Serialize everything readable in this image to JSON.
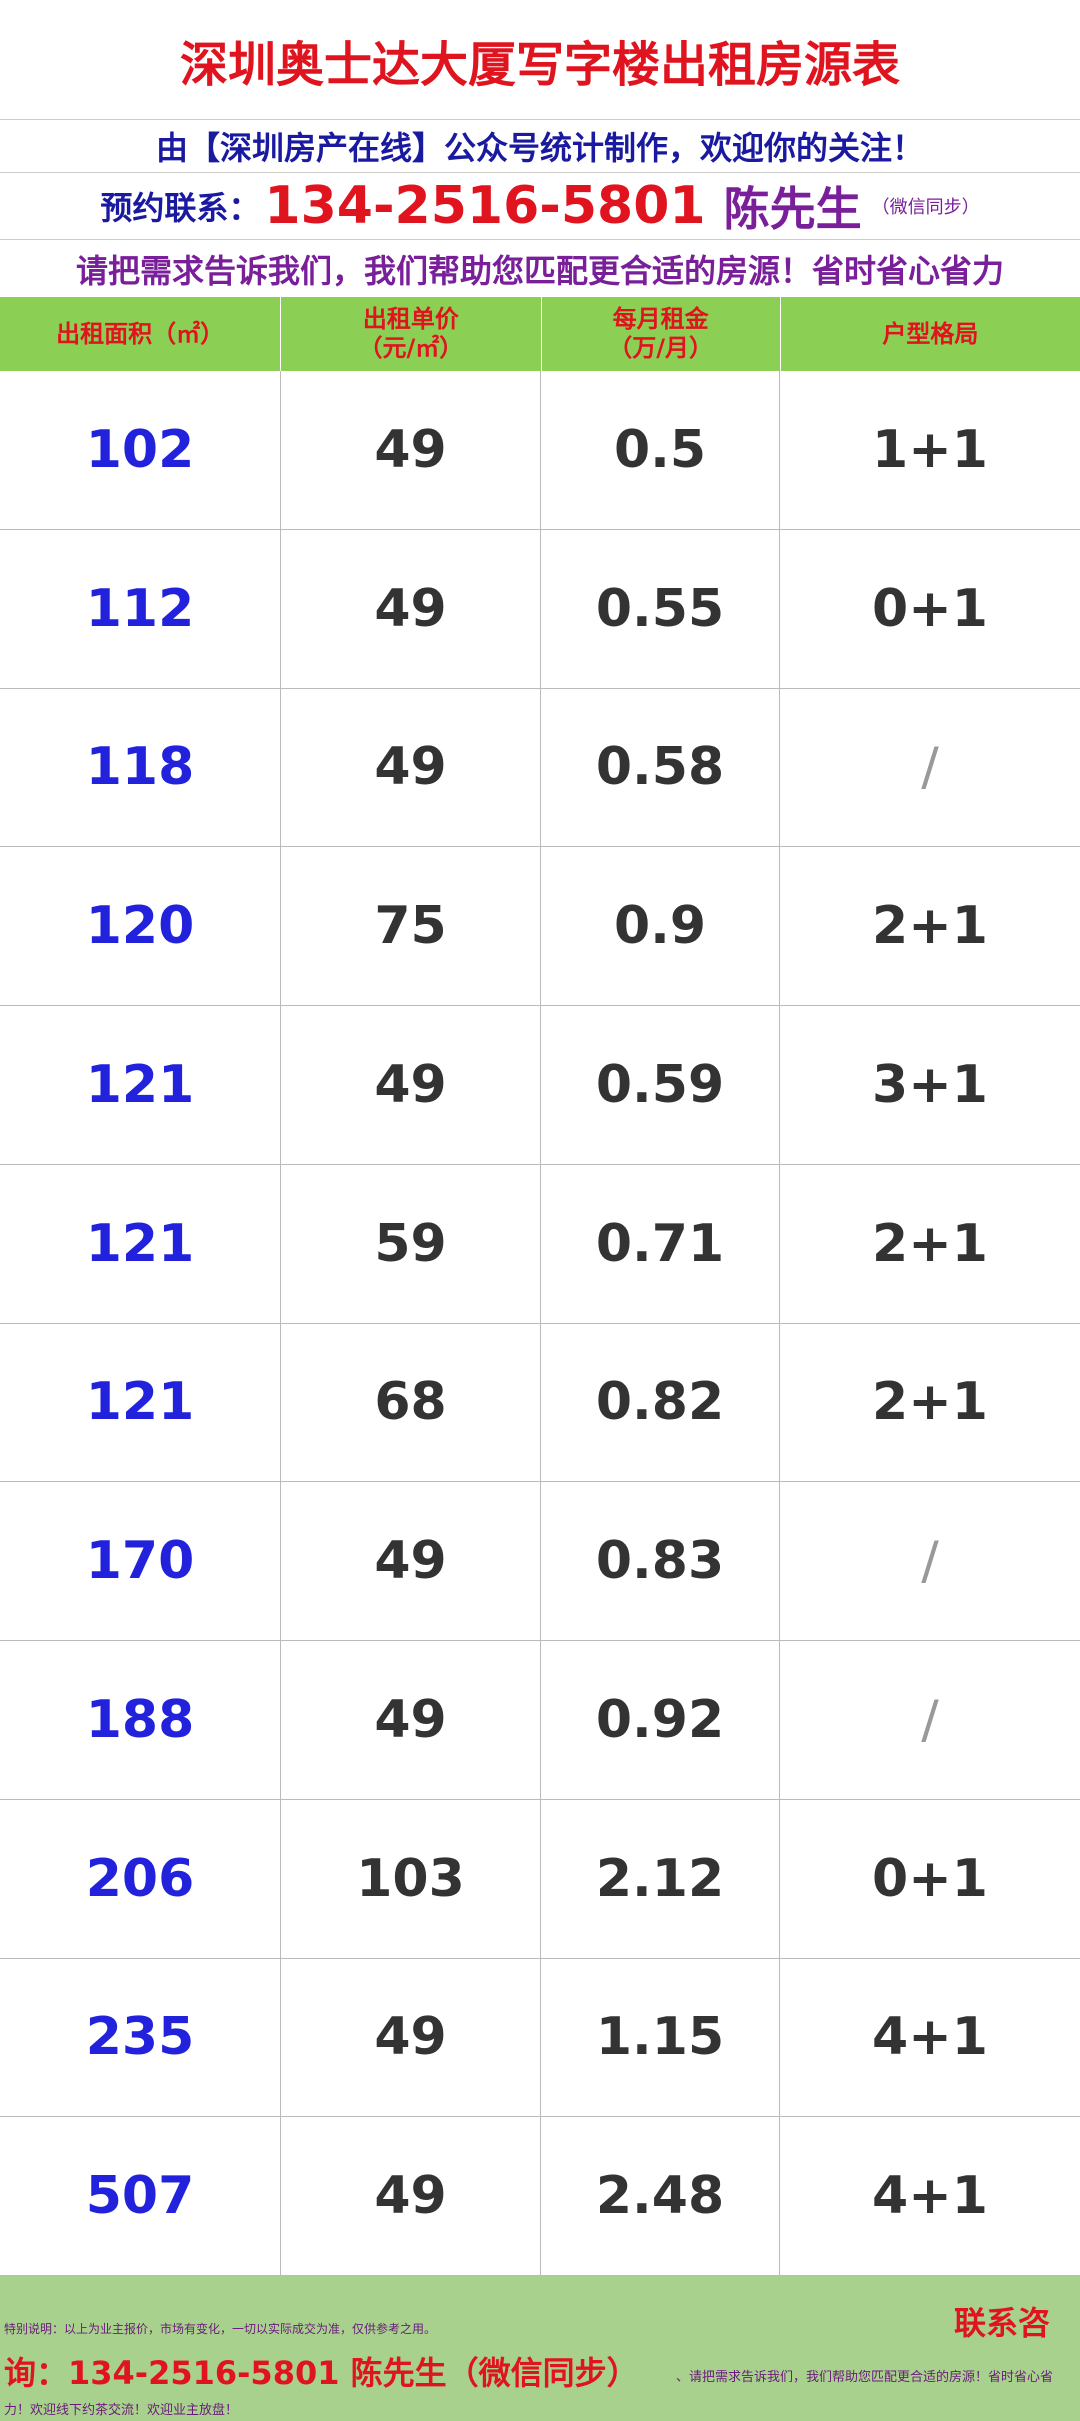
{
  "header": {
    "title": "深圳奥士达大厦写字楼出租房源表",
    "subtitle": "由【深圳房产在线】公众号统计制作，欢迎你的关注！",
    "contact_label": "预约联系：",
    "phone": "134-2516-5801",
    "name": "陈先生",
    "wechat_note": "（微信同步）",
    "slogan": "请把需求告诉我们，我们帮助您匹配更合适的房源！省时省心省力"
  },
  "table": {
    "headers": [
      [
        "出租面积（㎡）"
      ],
      [
        "出租单价",
        "（元/㎡）"
      ],
      [
        "每月租金",
        "（万/月）"
      ],
      [
        "户型格局"
      ]
    ],
    "rows": [
      [
        "102",
        "49",
        "0.5",
        "1+1"
      ],
      [
        "112",
        "49",
        "0.55",
        "0+1"
      ],
      [
        "118",
        "49",
        "0.58",
        "/"
      ],
      [
        "120",
        "75",
        "0.9",
        "2+1"
      ],
      [
        "121",
        "49",
        "0.59",
        "3+1"
      ],
      [
        "121",
        "59",
        "0.71",
        "2+1"
      ],
      [
        "121",
        "68",
        "0.82",
        "2+1"
      ],
      [
        "170",
        "49",
        "0.83",
        "/"
      ],
      [
        "188",
        "49",
        "0.92",
        "/"
      ],
      [
        "206",
        "103",
        "2.12",
        "0+1"
      ],
      [
        "235",
        "49",
        "1.15",
        "4+1"
      ],
      [
        "507",
        "49",
        "2.48",
        "4+1"
      ]
    ]
  },
  "footer": {
    "note": "特别说明：以上为业主报价，市场有变化，一切以实际成交为准，仅供参考之用。",
    "contact_head": "联系咨",
    "contact_line": "询：134-2516-5801  陈先生（微信同步）",
    "scroll_text": "、请把需求告诉我们，我们帮助您匹配更合适的房源！省时省心省",
    "scroll_text_end": "力！欢迎线下约茶交流！欢迎业主放盘！"
  }
}
